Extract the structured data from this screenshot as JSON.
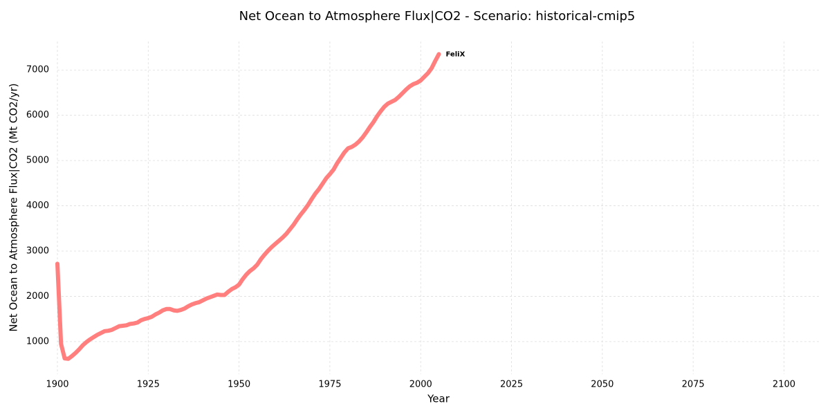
{
  "chart_data": {
    "type": "line",
    "title": "Net Ocean to Atmosphere Flux|CO2 - Scenario: historical-cmip5",
    "x_label": "Year",
    "y_label": "Net Ocean to Atmosphere Flux|CO2 (Mt CO2/yr)",
    "x": [
      1900,
      1901,
      1902,
      1903,
      1904,
      1905,
      1906,
      1907,
      1908,
      1909,
      1910,
      1911,
      1912,
      1913,
      1914,
      1915,
      1916,
      1917,
      1918,
      1919,
      1920,
      1921,
      1922,
      1923,
      1924,
      1925,
      1926,
      1927,
      1928,
      1929,
      1930,
      1931,
      1932,
      1933,
      1934,
      1935,
      1936,
      1937,
      1938,
      1939,
      1940,
      1941,
      1942,
      1943,
      1944,
      1945,
      1946,
      1947,
      1948,
      1949,
      1950,
      1951,
      1952,
      1953,
      1954,
      1955,
      1956,
      1957,
      1958,
      1959,
      1960,
      1961,
      1962,
      1963,
      1964,
      1965,
      1966,
      1967,
      1968,
      1969,
      1970,
      1971,
      1972,
      1973,
      1974,
      1975,
      1976,
      1977,
      1978,
      1979,
      1980,
      1981,
      1982,
      1983,
      1984,
      1985,
      1986,
      1987,
      1988,
      1989,
      1990,
      1991,
      1992,
      1993,
      1994,
      1995,
      1996,
      1997,
      1998,
      1999,
      2000,
      2001,
      2002,
      2003,
      2004,
      2005
    ],
    "series": [
      {
        "name": "FeliX",
        "color": "#ff7f7f",
        "values": [
          2720,
          950,
          630,
          620,
          680,
          750,
          830,
          920,
          990,
          1050,
          1100,
          1150,
          1190,
          1230,
          1240,
          1260,
          1300,
          1340,
          1350,
          1360,
          1390,
          1400,
          1420,
          1470,
          1500,
          1520,
          1550,
          1600,
          1640,
          1690,
          1720,
          1720,
          1690,
          1680,
          1700,
          1730,
          1780,
          1820,
          1850,
          1870,
          1910,
          1950,
          1980,
          2010,
          2040,
          2030,
          2030,
          2100,
          2160,
          2200,
          2260,
          2380,
          2480,
          2560,
          2620,
          2700,
          2820,
          2920,
          3010,
          3090,
          3160,
          3230,
          3300,
          3380,
          3480,
          3580,
          3700,
          3810,
          3910,
          4020,
          4150,
          4270,
          4370,
          4490,
          4610,
          4700,
          4800,
          4940,
          5060,
          5180,
          5270,
          5300,
          5350,
          5420,
          5510,
          5620,
          5740,
          5850,
          5980,
          6090,
          6190,
          6260,
          6300,
          6340,
          6410,
          6490,
          6570,
          6640,
          6690,
          6720,
          6770,
          6850,
          6930,
          7040,
          7200,
          7350
        ]
      }
    ],
    "xlim": [
      1900,
      2110
    ],
    "xticks": [
      1900,
      1925,
      1950,
      1975,
      2000,
      2025,
      2050,
      2075,
      2100
    ],
    "ylim": [
      280,
      7630
    ],
    "yticks": [
      1000,
      2000,
      3000,
      4000,
      5000,
      6000,
      7000
    ],
    "grid": true
  }
}
